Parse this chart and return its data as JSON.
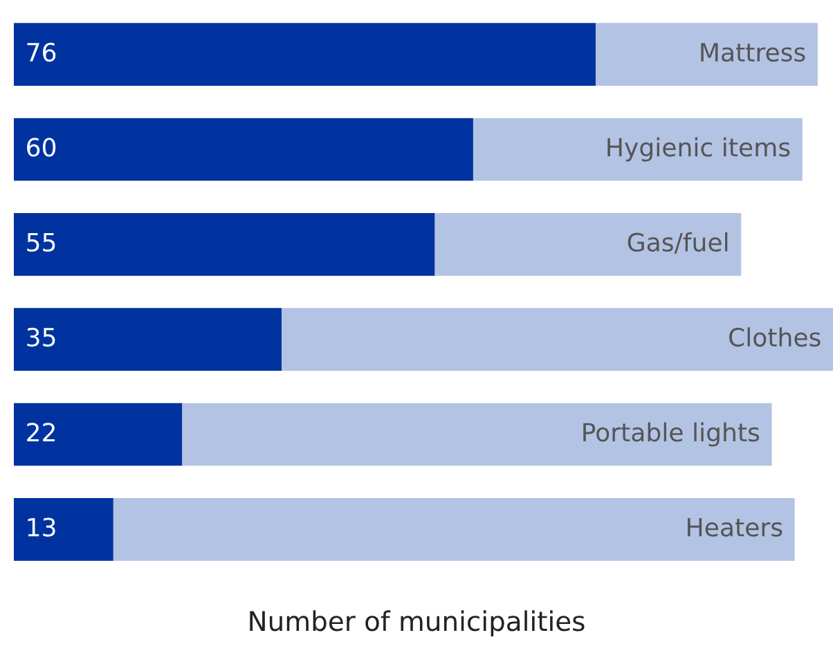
{
  "chart_data": {
    "type": "bar",
    "orientation": "horizontal",
    "stacked": true,
    "xlabel": "Number of municipalities",
    "categories": [
      "Mattress",
      "Hygienic items",
      "Gas/fuel",
      "Clothes",
      "Portable lights",
      "Heaters"
    ],
    "series": [
      {
        "color": "#0033a0",
        "values": [
          76,
          60,
          55,
          35,
          22,
          13
        ],
        "value_labels": [
          "76",
          "60",
          "55",
          "35",
          "22",
          "13"
        ]
      },
      {
        "color": "#b3c3e3",
        "values": [
          29,
          43,
          40,
          72,
          77,
          89
        ]
      }
    ],
    "tick_labels": false
  }
}
